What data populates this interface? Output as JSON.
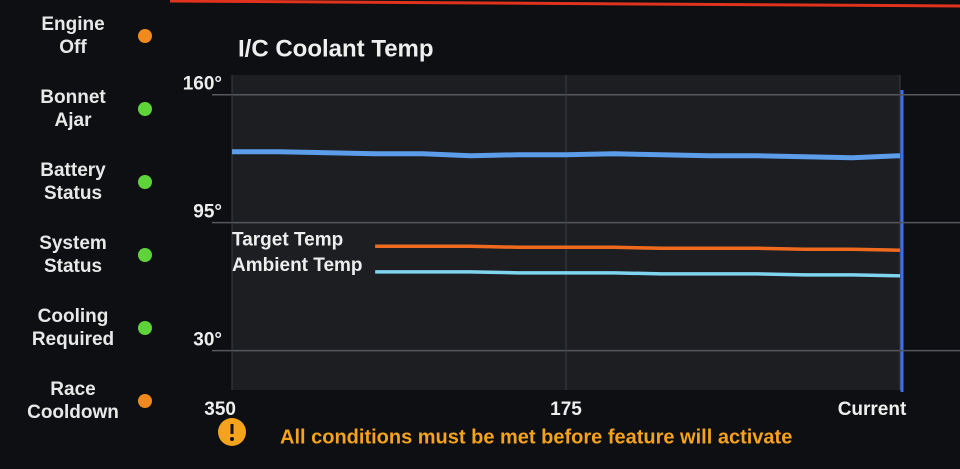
{
  "sidebar": [
    {
      "label": "Engine Off",
      "color": "#f08a1c"
    },
    {
      "label": "Bonnet Ajar",
      "color": "#5fd43a"
    },
    {
      "label": "Battery Status",
      "color": "#5fd43a"
    },
    {
      "label": "System Status",
      "color": "#5fd43a"
    },
    {
      "label": "Cooling Required",
      "color": "#5fd43a"
    },
    {
      "label": "Race Cooldown",
      "color": "#f08a1c"
    }
  ],
  "chart_data": {
    "type": "line",
    "title": "I/C Coolant Temp",
    "x": [
      350,
      325,
      300,
      275,
      250,
      225,
      200,
      175,
      150,
      125,
      100,
      75,
      50,
      25,
      0
    ],
    "series": [
      {
        "name": "I/C Coolant Temp",
        "color": "#5b9de8",
        "values": [
          131,
          131,
          130.5,
          130,
          130,
          129,
          129.5,
          129.5,
          130,
          129.5,
          129,
          129,
          128.5,
          128,
          129
        ]
      },
      {
        "name": "Target Temp",
        "color": "#f06a1e",
        "values": [
          null,
          null,
          null,
          83,
          83,
          83,
          82.5,
          82.5,
          82.5,
          82,
          82,
          82,
          81.5,
          81.5,
          81
        ]
      },
      {
        "name": "Ambient Temp",
        "color": "#7fd4f0",
        "values": [
          null,
          null,
          null,
          70,
          70,
          70,
          69.5,
          69.5,
          69.5,
          69,
          69,
          69,
          68.5,
          68.5,
          68
        ]
      }
    ],
    "xlim": [
      350,
      0
    ],
    "xticks": [
      350,
      175,
      {
        "value": 0,
        "label": "Current"
      }
    ],
    "ylim": [
      10,
      170
    ],
    "yticks": [
      {
        "value": 30,
        "label": "30°"
      },
      {
        "value": 95,
        "label": "95°"
      },
      {
        "value": 160,
        "label": "160°"
      }
    ],
    "grid": true
  },
  "warning": "All conditions must be met before feature will activate"
}
